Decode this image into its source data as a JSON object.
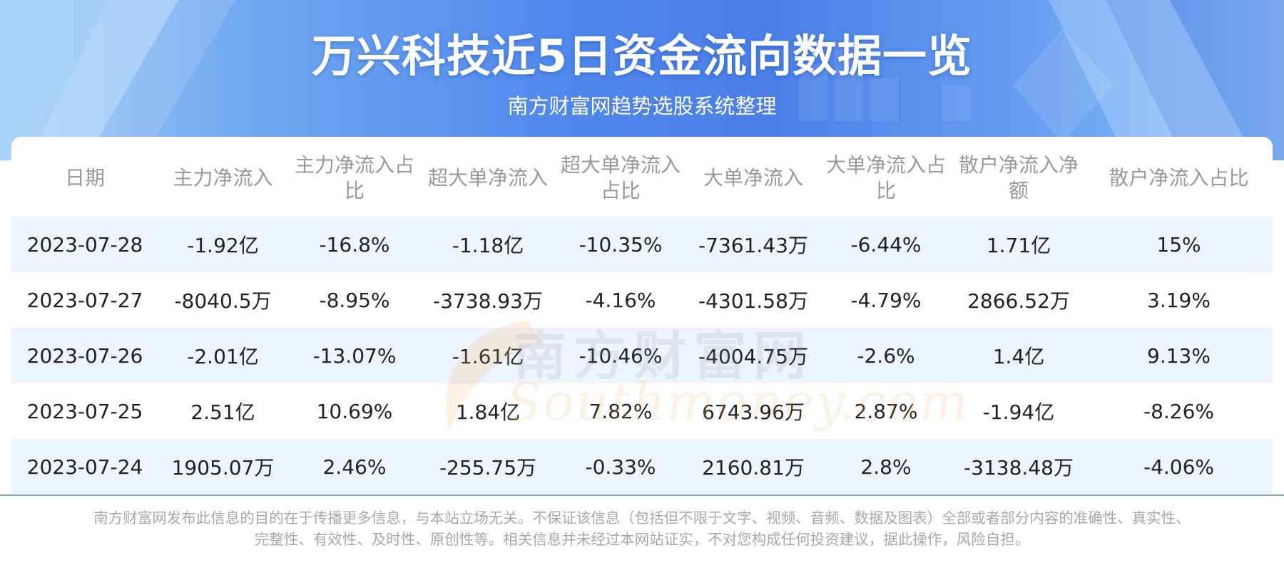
{
  "header": {
    "title": "万兴科技近5日资金流向数据一览",
    "subtitle": "南方财富网趋势选股系统整理"
  },
  "watermark": {
    "cn": "南方财富网",
    "en": "Southmoney.com"
  },
  "table": {
    "columns": [
      "日期",
      "主力净流入",
      "主力净流入占比",
      "超大单净流入",
      "超大单净流入占比",
      "大单净流入",
      "大单净流入占比",
      "散户净流入净额",
      "散户净流入占比"
    ],
    "rows": [
      [
        "2023-07-28",
        "-1.92亿",
        "-16.8%",
        "-1.18亿",
        "-10.35%",
        "-7361.43万",
        "-6.44%",
        "1.71亿",
        "15%"
      ],
      [
        "2023-07-27",
        "-8040.5万",
        "-8.95%",
        "-3738.93万",
        "-4.16%",
        "-4301.58万",
        "-4.79%",
        "2866.52万",
        "3.19%"
      ],
      [
        "2023-07-26",
        "-2.01亿",
        "-13.07%",
        "-1.61亿",
        "-10.46%",
        "-4004.75万",
        "-2.6%",
        "1.4亿",
        "9.13%"
      ],
      [
        "2023-07-25",
        "2.51亿",
        "10.69%",
        "1.84亿",
        "7.82%",
        "6743.96万",
        "2.87%",
        "-1.94亿",
        "-8.26%"
      ],
      [
        "2023-07-24",
        "1905.07万",
        "2.46%",
        "-255.75万",
        "-0.33%",
        "2160.81万",
        "2.8%",
        "-3138.48万",
        "-4.06%"
      ]
    ]
  },
  "footer": {
    "line1": "南方财富网发布此信息的目的在于传播更多信息，与本站立场无关。不保证该信息（包括但不限于文字、视频、音频、数据及图表）全部或者部分内容的准确性、真实性、",
    "line2": "完整性、有效性、及时性、原创性等。相关信息并未经过本网站证实，不对您构成任何投资建议，据此操作，风险自担。"
  },
  "colors": {
    "hero_blue": "#4a7fe8",
    "row_stripe": "#edf4fd",
    "header_text": "#9a9a9a",
    "body_text": "#222222",
    "rule": "#7fa8dc"
  }
}
